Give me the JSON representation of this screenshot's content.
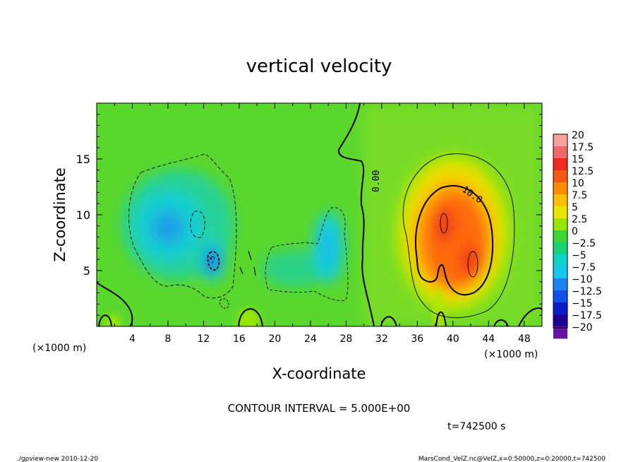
{
  "chart_data": {
    "type": "heatmap",
    "title": "vertical velocity",
    "xlabel": "X-coordinate",
    "ylabel": "Z-coordinate",
    "x_unit": "(×1000 m)",
    "z_unit": "(×1000 m)",
    "xlim": [
      0,
      50
    ],
    "zlim": [
      0,
      20
    ],
    "x_ticks": [
      4,
      8,
      12,
      16,
      20,
      24,
      28,
      32,
      36,
      40,
      44,
      48
    ],
    "z_ticks": [
      5,
      10,
      15
    ],
    "colorbar": {
      "levels": [
        20,
        17.5,
        15,
        12.5,
        10,
        7.5,
        5,
        2.5,
        0,
        -2.5,
        -5,
        -7.5,
        -10,
        -12.5,
        -15,
        -17.5,
        -20
      ],
      "labels": [
        "20",
        "17.5",
        "15",
        "12.5",
        "10",
        "7.5",
        "5",
        "2.5",
        "0",
        "−2.5",
        "−5",
        "−7.5",
        "−10",
        "−12.5",
        "−15",
        "−17.5",
        "−20"
      ],
      "colors": [
        "#f7a0a0",
        "#f06a6a",
        "#f02a1e",
        "#f55a14",
        "#ff8c00",
        "#ffc000",
        "#e6e600",
        "#96e600",
        "#3cd732",
        "#19d278",
        "#0fd2c8",
        "#14c8f0",
        "#1e82f0",
        "#1450e6",
        "#0a1ec8",
        "#1e0096",
        "#6414a0"
      ]
    },
    "contour_interval": "CONTOUR INTERVAL = 5.000E+00",
    "contour_labels": [
      "0.00",
      "10.0",
      "-5"
    ],
    "features": [
      {
        "kind": "updraft",
        "x_center": 40,
        "z_center": 8,
        "max": 15
      },
      {
        "kind": "downdraft",
        "x_center": 8.5,
        "z_center": 9,
        "min": -10
      },
      {
        "kind": "downdraft",
        "x_center": 13,
        "z_center": 6,
        "min": -12.5
      },
      {
        "kind": "downdraft",
        "x_center": 26,
        "z_center": 7.5,
        "min": -7.5
      }
    ],
    "time_label": "t=742500 s"
  },
  "footer": {
    "left": "./gpview-new   2010-12-20",
    "right": "MarsCond_VelZ.nc@VelZ,x=0:50000,z=0:20000,t=742500"
  }
}
